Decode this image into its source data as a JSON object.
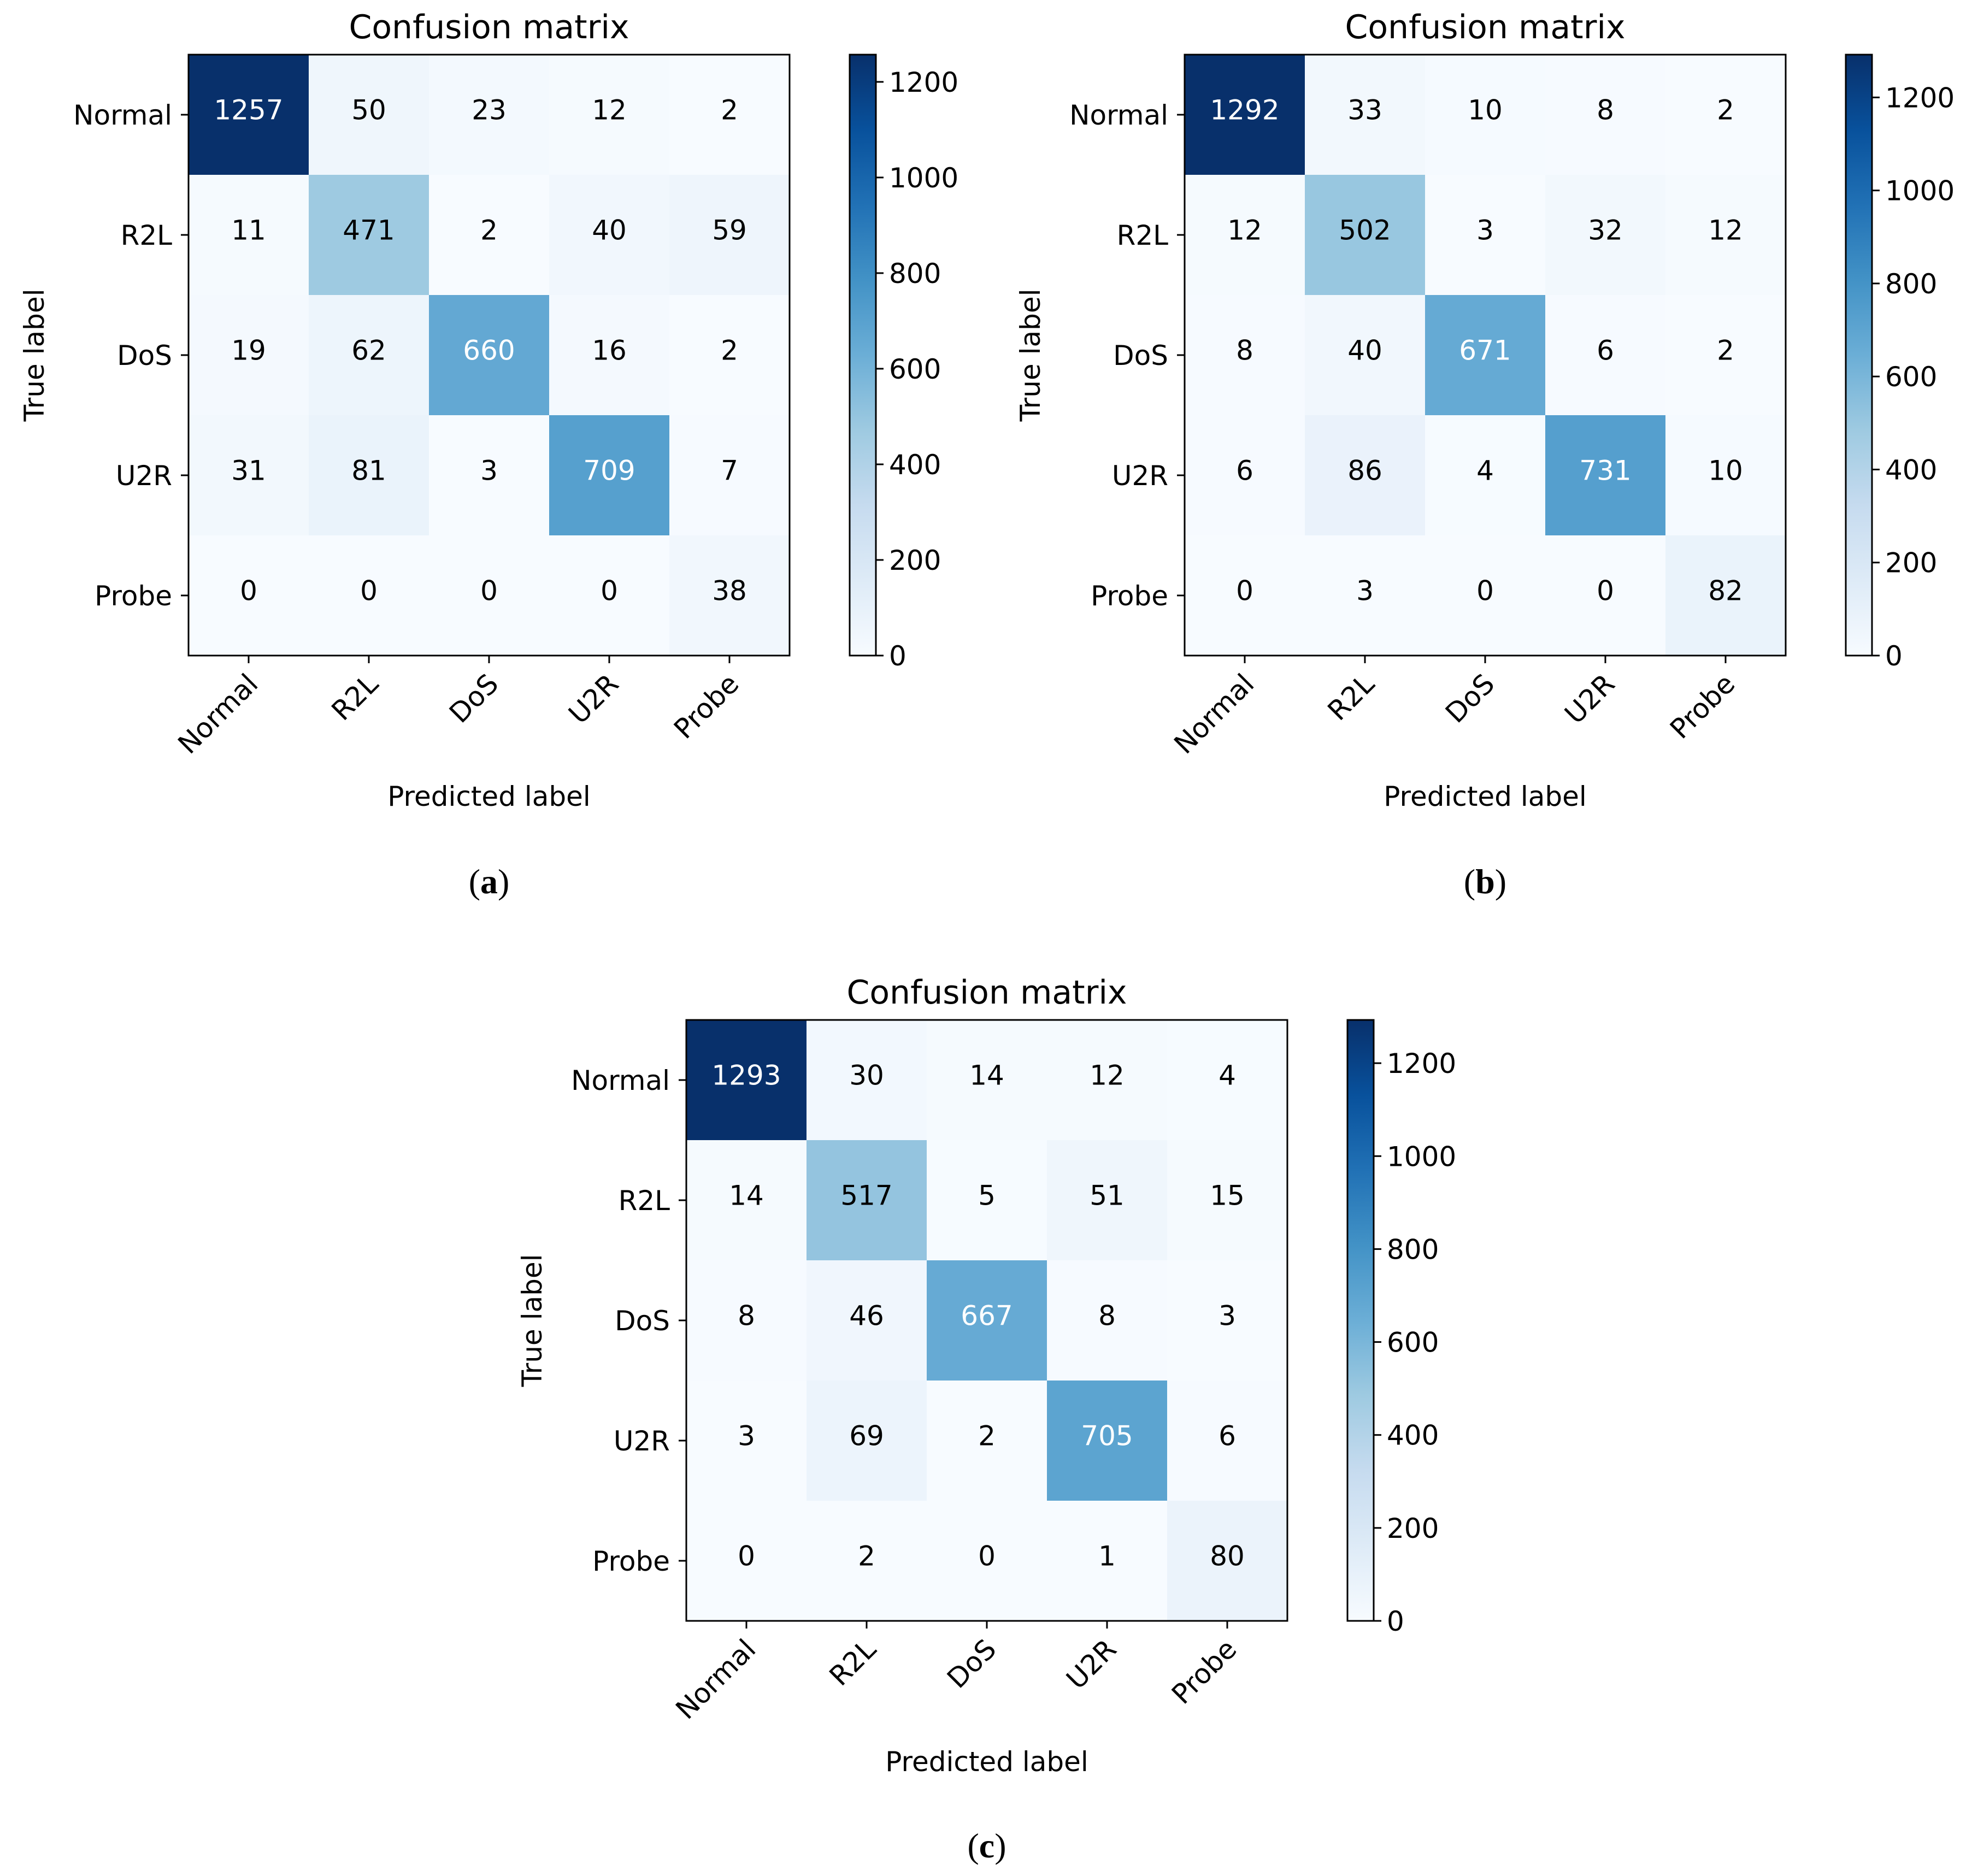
{
  "figure": {
    "captions": [
      "(a)",
      "(b)",
      "(c)"
    ]
  },
  "chart_data": [
    {
      "type": "heatmap",
      "title": "Confusion matrix",
      "xlabel": "Predicted label",
      "ylabel": "True label",
      "categories": [
        "Normal",
        "R2L",
        "DoS",
        "U2R",
        "Probe"
      ],
      "values": [
        [
          1257,
          50,
          23,
          12,
          2
        ],
        [
          11,
          471,
          2,
          40,
          59
        ],
        [
          19,
          62,
          660,
          16,
          2
        ],
        [
          31,
          81,
          3,
          709,
          7
        ],
        [
          0,
          0,
          0,
          0,
          38
        ]
      ],
      "colorbar": {
        "range": [
          0,
          1257
        ],
        "ticks": [
          0,
          200,
          400,
          600,
          800,
          1000,
          1200
        ]
      },
      "colormap": "Blues",
      "caption_label": "a"
    },
    {
      "type": "heatmap",
      "title": "Confusion matrix",
      "xlabel": "Predicted label",
      "ylabel": "True label",
      "categories": [
        "Normal",
        "R2L",
        "DoS",
        "U2R",
        "Probe"
      ],
      "values": [
        [
          1292,
          33,
          10,
          8,
          2
        ],
        [
          12,
          502,
          3,
          32,
          12
        ],
        [
          8,
          40,
          671,
          6,
          2
        ],
        [
          6,
          86,
          4,
          731,
          10
        ],
        [
          0,
          3,
          0,
          0,
          82
        ]
      ],
      "colorbar": {
        "range": [
          0,
          1292
        ],
        "ticks": [
          0,
          200,
          400,
          600,
          800,
          1000,
          1200
        ]
      },
      "colormap": "Blues",
      "caption_label": "b"
    },
    {
      "type": "heatmap",
      "title": "Confusion matrix",
      "xlabel": "Predicted label",
      "ylabel": "True label",
      "categories": [
        "Normal",
        "R2L",
        "DoS",
        "U2R",
        "Probe"
      ],
      "values": [
        [
          1293,
          30,
          14,
          12,
          4
        ],
        [
          14,
          517,
          5,
          51,
          15
        ],
        [
          8,
          46,
          667,
          8,
          3
        ],
        [
          3,
          69,
          2,
          705,
          6
        ],
        [
          0,
          2,
          0,
          1,
          80
        ]
      ],
      "colorbar": {
        "range": [
          0,
          1293
        ],
        "ticks": [
          0,
          200,
          400,
          600,
          800,
          1000,
          1200
        ]
      },
      "colormap": "Blues",
      "caption_label": "c"
    }
  ]
}
